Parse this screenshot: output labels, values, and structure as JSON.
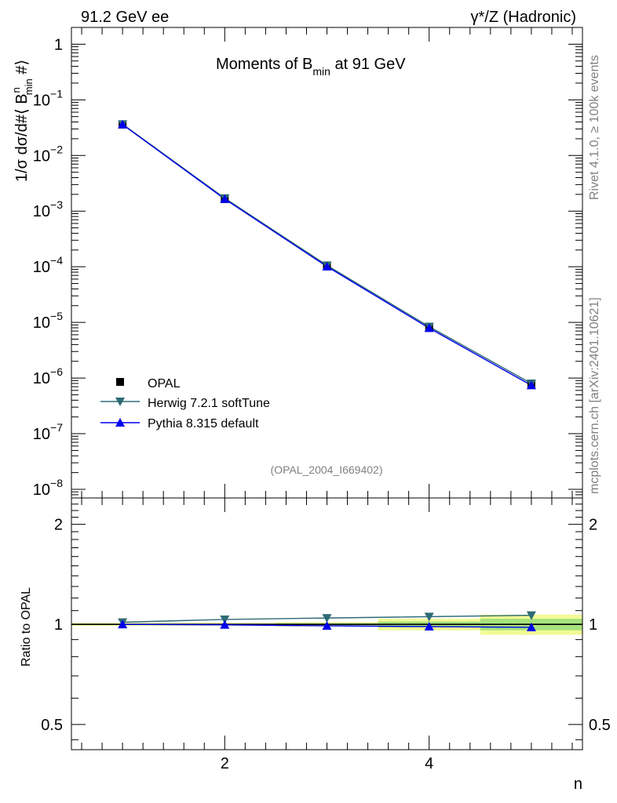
{
  "header": {
    "left": "91.2 GeV ee",
    "right": "γ*/Z (Hadronic)"
  },
  "side_labels": {
    "rivet": "Rivet 4.1.0, ≥ 100k events",
    "mcplots": "mcplots.cern.ch [arXiv:2401.10621]"
  },
  "chart_data": [
    {
      "type": "line",
      "panel": "main",
      "title_main": "Moments of B",
      "title_sub": "min",
      "title_end": " at 91 GeV",
      "ylabel_parts": [
        "1/σ  dσ/d#⟨ B",
        "n",
        "min",
        " #⟩"
      ],
      "xlabel": "n",
      "yscale": "log",
      "ylim": [
        7e-09,
        2.0
      ],
      "xlim": [
        0.5,
        5.5
      ],
      "y_tick_labels": [
        {
          "base": "1",
          "exp": "",
          "value": 1
        },
        {
          "base": "10",
          "exp": "−1",
          "value": 0.1
        },
        {
          "base": "10",
          "exp": "−2",
          "value": 0.01
        },
        {
          "base": "10",
          "exp": "−3",
          "value": 0.001
        },
        {
          "base": "10",
          "exp": "−4",
          "value": 0.0001
        },
        {
          "base": "10",
          "exp": "−5",
          "value": 1e-05
        },
        {
          "base": "10",
          "exp": "−6",
          "value": 1e-06
        },
        {
          "base": "10",
          "exp": "−7",
          "value": 1e-07
        },
        {
          "base": "10",
          "exp": "−8",
          "value": 1e-08
        }
      ],
      "x": [
        1,
        2,
        3,
        4,
        5
      ],
      "series": [
        {
          "name": "OPAL",
          "marker": "square",
          "color": "#000000",
          "values": [
            0.036,
            0.00165,
            0.000102,
            8e-06,
            7.5e-07
          ]
        },
        {
          "name": "Herwig 7.2.1 softTune",
          "marker": "triangle-down",
          "color": "#2e6b75",
          "values": [
            0.0365,
            0.00171,
            0.000106,
            8.4e-06,
            8e-07
          ]
        },
        {
          "name": "Pythia 8.315 default",
          "marker": "triangle-up",
          "color": "#0000ee",
          "values": [
            0.036,
            0.00165,
            0.000101,
            7.9e-06,
            7.4e-07
          ]
        }
      ],
      "annotation": "(OPAL_2004_I669402)"
    },
    {
      "type": "line",
      "panel": "ratio",
      "ylabel": "Ratio to OPAL",
      "xlabel": "n",
      "yscale": "log",
      "ylim": [
        0.42,
        2.4
      ],
      "x_ticks": [
        2,
        4
      ],
      "x_tick_labels": [
        "2",
        "4"
      ],
      "y_ticks": [
        0.5,
        1,
        2
      ],
      "y_tick_labels": [
        "0.5",
        "1",
        "2"
      ],
      "x": [
        1,
        2,
        3,
        4,
        5
      ],
      "band_x": [
        0.5,
        1.5,
        2.5,
        3.5,
        4.5,
        5.5
      ],
      "band_yellow": [
        0.01,
        0.01,
        0.015,
        0.04,
        0.07
      ],
      "band_green": [
        0.005,
        0.005,
        0.008,
        0.02,
        0.04
      ],
      "series": [
        {
          "name": "Herwig 7.2.1 softTune",
          "color": "#2e6b75",
          "values": [
            1.015,
            1.035,
            1.045,
            1.055,
            1.065
          ]
        },
        {
          "name": "Pythia 8.315 default",
          "color": "#0000ee",
          "values": [
            1.0,
            0.997,
            0.99,
            0.985,
            0.98
          ]
        }
      ]
    }
  ]
}
